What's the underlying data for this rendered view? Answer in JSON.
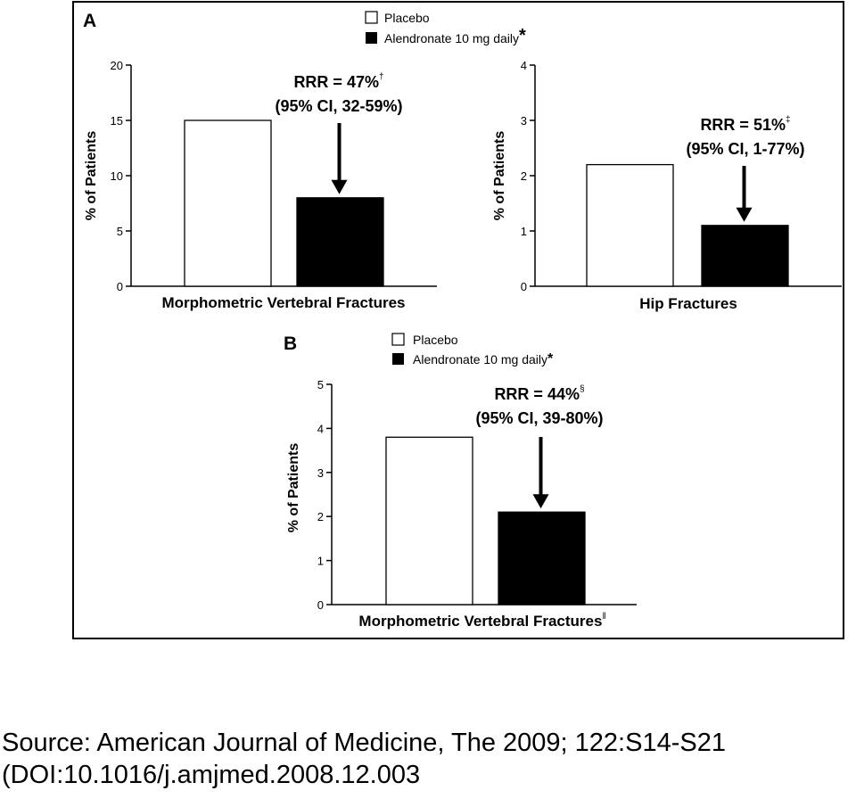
{
  "chart_data": [
    {
      "panel": "A",
      "type": "bar",
      "categories": [
        "Placebo",
        "Alendronate 10 mg daily"
      ],
      "series": [
        {
          "values": [
            15,
            8
          ]
        }
      ],
      "xlabel": "Morphometric Vertebral Fractures",
      "ylabel": "% of Patients",
      "ylim": [
        0,
        20
      ],
      "yticks": [
        0,
        5,
        10,
        15,
        20
      ],
      "annotation": {
        "line1": "RRR = 47%",
        "sup": "†",
        "line2": "(95% CI, 32-59%)"
      }
    },
    {
      "panel": "A",
      "type": "bar",
      "categories": [
        "Placebo",
        "Alendronate 10 mg daily"
      ],
      "series": [
        {
          "values": [
            2.2,
            1.1
          ]
        }
      ],
      "xlabel": "Hip Fractures",
      "ylabel": "% of Patients",
      "ylim": [
        0,
        4
      ],
      "yticks": [
        0,
        1,
        2,
        3,
        4
      ],
      "annotation": {
        "line1": "RRR = 51%",
        "sup": "‡",
        "line2": "(95% CI, 1-77%)"
      }
    },
    {
      "panel": "B",
      "type": "bar",
      "categories": [
        "Placebo",
        "Alendronate 10 mg daily"
      ],
      "series": [
        {
          "values": [
            3.8,
            2.1
          ]
        }
      ],
      "xlabel": "Morphometric Vertebral Fractures",
      "xlabel_sup": "‖",
      "ylabel": "% of Patients",
      "ylim": [
        0,
        5
      ],
      "yticks": [
        0,
        1,
        2,
        3,
        4,
        5
      ],
      "annotation": {
        "line1": "RRR = 44%",
        "sup": "§",
        "line2": "(95% CI, 39-80%)"
      }
    }
  ],
  "legends": {
    "A": {
      "placebo": "Placebo",
      "alendronate": "Alendronate 10 mg daily",
      "marker": "*"
    },
    "B": {
      "placebo": "Placebo",
      "alendronate": "Alendronate 10 mg daily",
      "marker": "*"
    }
  },
  "panel_labels": {
    "a": "A",
    "b": "B"
  },
  "colors": {
    "placebo": "#ffffff",
    "alendronate": "#000000",
    "outline": "#000000"
  },
  "source": {
    "line1": "Source: American Journal of Medicine, The 2009; 122:S14-S21",
    "line2": "(DOI:10.1016/j.amjmed.2008.12.003"
  }
}
